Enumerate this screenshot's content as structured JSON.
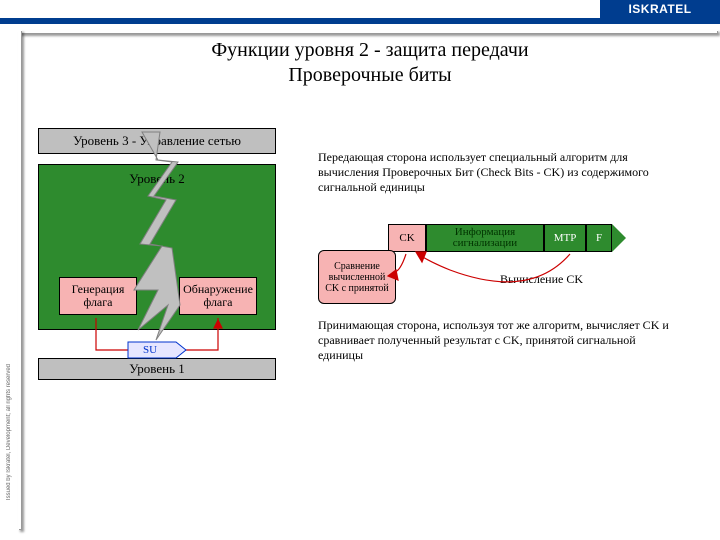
{
  "colors": {
    "brand_blue": "#003d8f",
    "level_bar_bg": "#bfbfbf",
    "level2_bg": "#2e8b2e",
    "inner_box_bg": "#f7b3b3",
    "su_bg": "#e6e6ff",
    "su_border": "#0033cc",
    "packet_ck_bg": "#f7b3b3",
    "packet_info_bg": "#2e8b2e",
    "packet_mtp_bg": "#2e8b2e",
    "packet_f_bg": "#2e8b2e",
    "packet_info_text": "#003300",
    "arrow_red": "#cc0000",
    "lightning": "#c0c0c0"
  },
  "header": {
    "brand": "ISKRATEL"
  },
  "copyright": "Issued by Iskratel, Development; all rights reserved",
  "title": {
    "line1": "Функции уровня 2 - защита передачи",
    "line2": "Проверочные биты"
  },
  "left": {
    "level3": "Уровень 3 - Управление сетью",
    "level2": "Уровень 2",
    "gen": "Генерация\nфлага",
    "det": "Обнаружение\nфлага",
    "su": "SU",
    "level1": "Уровень 1"
  },
  "right": {
    "para1": "Передающая сторона использует специальный алгоритм для вычисления Проверочных Бит (Check Bits - CK) из содержимого сигнальной единицы",
    "packet": {
      "ck": "CK",
      "info": "Информация сигнализации",
      "mtp": "MTP",
      "f": "F"
    },
    "calc": "Вычисление CK",
    "compare": "Сравнение вычисленной CK с принятой",
    "para2": "Принимающая сторона, используя тот же алгоритм, вычисляет CK и сравнивает полученный результат с CK, принятой сигнальной единицы"
  }
}
